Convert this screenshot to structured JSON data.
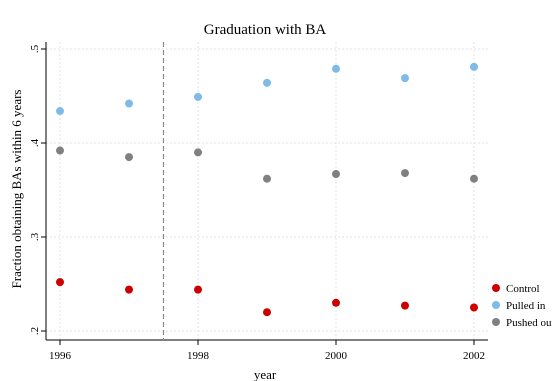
{
  "chart_data": {
    "type": "scatter",
    "title": "Graduation with BA",
    "xlabel": "year",
    "ylabel": "Fraction obtaining BAs within 6 years",
    "xlim": [
      1996,
      2002
    ],
    "ylim": [
      0.2,
      0.5
    ],
    "x_ticks": [
      "1996",
      "1998",
      "2000",
      "2002"
    ],
    "y_ticks": [
      ".2",
      ".3",
      ".4",
      ".5"
    ],
    "grid": true,
    "reference_line_x": 1997.5,
    "legend_position": "right",
    "series": [
      {
        "name": "Control",
        "color": "#cc0000",
        "x": [
          1996,
          1997,
          1998,
          1999,
          2000,
          2001,
          2002
        ],
        "values": [
          0.252,
          0.244,
          0.244,
          0.22,
          0.23,
          0.227,
          0.225
        ]
      },
      {
        "name": "Pulled in",
        "color": "#7fbbe6",
        "x": [
          1996,
          1997,
          1998,
          1999,
          2000,
          2001,
          2002
        ],
        "values": [
          0.434,
          0.442,
          0.449,
          0.464,
          0.479,
          0.469,
          0.481
        ]
      },
      {
        "name": "Pushed out",
        "color": "#808080",
        "x": [
          1996,
          1997,
          1998,
          1999,
          2000,
          2001,
          2002
        ],
        "values": [
          0.392,
          0.385,
          0.39,
          0.362,
          0.367,
          0.368,
          0.362
        ]
      }
    ]
  }
}
